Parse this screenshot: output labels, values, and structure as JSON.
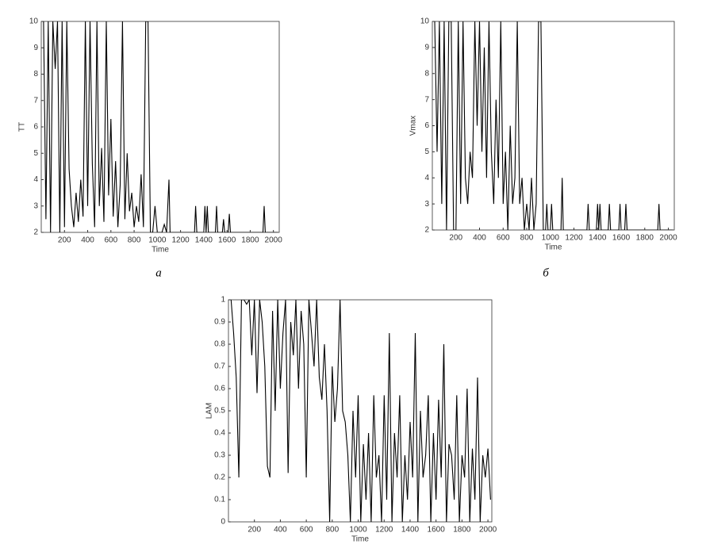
{
  "chart_data": [
    {
      "type": "line",
      "y_label": "TT",
      "x_label": "Time",
      "caption": "а",
      "color": "#000000",
      "xlim": [
        0,
        2050
      ],
      "ylim": [
        2,
        10
      ],
      "xticks": [
        200,
        400,
        600,
        800,
        1000,
        1200,
        1400,
        1600,
        1800,
        2000
      ],
      "yticks": [
        2,
        3,
        4,
        5,
        6,
        7,
        8,
        9,
        10
      ],
      "x": [
        20,
        40,
        60,
        80,
        100,
        120,
        140,
        160,
        180,
        200,
        220,
        240,
        260,
        280,
        300,
        320,
        340,
        360,
        380,
        400,
        420,
        440,
        460,
        480,
        500,
        520,
        540,
        560,
        580,
        600,
        620,
        640,
        660,
        680,
        700,
        720,
        740,
        760,
        780,
        800,
        820,
        840,
        860,
        880,
        900,
        920,
        940,
        960,
        980,
        1000,
        1040,
        1060,
        1080,
        1100,
        1110,
        1320,
        1330,
        1340,
        1400,
        1410,
        1420,
        1430,
        1440,
        1500,
        1510,
        1520,
        1560,
        1570,
        1580,
        1610,
        1620,
        1630,
        1910,
        1920,
        1930,
        2040
      ],
      "values": [
        10,
        2.5,
        10,
        2,
        10,
        8.2,
        10,
        2,
        10,
        2.2,
        10,
        4.4,
        3,
        2.2,
        3.5,
        2.4,
        4,
        2.6,
        10,
        3,
        10,
        4.6,
        2.2,
        10,
        3,
        5.2,
        2.4,
        10,
        3.4,
        6.3,
        2.6,
        4.7,
        2.2,
        3.8,
        10,
        2.5,
        5,
        2.8,
        3.5,
        2.2,
        3,
        2.4,
        4.2,
        2.2,
        10,
        10,
        2,
        2,
        3,
        2,
        2,
        2.3,
        2,
        4,
        2,
        2,
        3,
        2,
        2,
        3,
        2,
        3,
        2,
        2,
        3,
        2,
        2,
        2.5,
        2,
        2,
        2.7,
        2,
        2,
        3,
        2,
        2
      ]
    },
    {
      "type": "line",
      "y_label": "Vmax",
      "x_label": "Time",
      "caption": "б",
      "color": "#000000",
      "xlim": [
        0,
        2050
      ],
      "ylim": [
        2,
        10
      ],
      "xticks": [
        200,
        400,
        600,
        800,
        1000,
        1200,
        1400,
        1600,
        1800,
        2000
      ],
      "yticks": [
        2,
        3,
        4,
        5,
        6,
        7,
        8,
        9,
        10
      ],
      "x": [
        20,
        40,
        60,
        80,
        100,
        120,
        140,
        160,
        180,
        200,
        220,
        240,
        260,
        280,
        300,
        320,
        340,
        360,
        380,
        400,
        420,
        440,
        460,
        480,
        500,
        520,
        540,
        560,
        580,
        600,
        620,
        640,
        660,
        680,
        700,
        720,
        740,
        760,
        780,
        800,
        820,
        840,
        860,
        880,
        900,
        920,
        940,
        960,
        970,
        980,
        1000,
        1010,
        1020,
        1090,
        1100,
        1110,
        1310,
        1320,
        1330,
        1390,
        1400,
        1410,
        1420,
        1430,
        1490,
        1500,
        1510,
        1580,
        1590,
        1600,
        1630,
        1640,
        1650,
        1910,
        1920,
        1930,
        2040
      ],
      "values": [
        10,
        5,
        10,
        3,
        10,
        2,
        10,
        10,
        2,
        2,
        10,
        3,
        10,
        4,
        3,
        5,
        4,
        10,
        6,
        10,
        5,
        9,
        4,
        10,
        5,
        3,
        7,
        4,
        10,
        3,
        5,
        2,
        6,
        3,
        4,
        10,
        3,
        4,
        2,
        3,
        2,
        4,
        2,
        3,
        10,
        10,
        2,
        2,
        3,
        2,
        2,
        3,
        2,
        2,
        4,
        2,
        2,
        3,
        2,
        2,
        3,
        2,
        3,
        2,
        2,
        3,
        2,
        2,
        3,
        2,
        2,
        3,
        2,
        2,
        3,
        2,
        2
      ]
    },
    {
      "type": "line",
      "y_label": "LAM",
      "x_label": "Time",
      "color": "#000000",
      "xlim": [
        0,
        2030
      ],
      "ylim": [
        0,
        1
      ],
      "xticks": [
        200,
        400,
        600,
        800,
        1000,
        1200,
        1400,
        1600,
        1800,
        2000
      ],
      "yticks": [
        0,
        0.1,
        0.2,
        0.3,
        0.4,
        0.5,
        0.6,
        0.7,
        0.8,
        0.9,
        1
      ],
      "x": [
        20,
        40,
        60,
        80,
        100,
        120,
        140,
        160,
        180,
        200,
        220,
        240,
        260,
        280,
        300,
        320,
        340,
        360,
        380,
        400,
        420,
        440,
        460,
        480,
        500,
        520,
        540,
        560,
        580,
        600,
        620,
        640,
        660,
        680,
        700,
        720,
        740,
        760,
        780,
        800,
        820,
        840,
        860,
        880,
        900,
        920,
        940,
        960,
        980,
        1000,
        1020,
        1040,
        1060,
        1080,
        1100,
        1120,
        1140,
        1160,
        1180,
        1200,
        1220,
        1240,
        1260,
        1280,
        1300,
        1320,
        1340,
        1360,
        1380,
        1400,
        1420,
        1440,
        1460,
        1480,
        1500,
        1520,
        1540,
        1560,
        1580,
        1600,
        1620,
        1640,
        1660,
        1680,
        1700,
        1720,
        1740,
        1760,
        1780,
        1800,
        1820,
        1840,
        1860,
        1880,
        1900,
        1920,
        1940,
        1960,
        1980,
        2000,
        2020
      ],
      "values": [
        1,
        0.85,
        0.65,
        0.2,
        1,
        1,
        0.98,
        1,
        0.75,
        1,
        0.58,
        1,
        0.9,
        0.7,
        0.25,
        0.2,
        0.95,
        0.5,
        1,
        0.6,
        0.85,
        1,
        0.22,
        0.9,
        0.75,
        1,
        0.6,
        0.95,
        0.8,
        0.2,
        1,
        0.85,
        0.7,
        1,
        0.65,
        0.55,
        0.8,
        0.5,
        0,
        0.7,
        0.45,
        0.6,
        1,
        0.5,
        0.45,
        0.3,
        0,
        0.5,
        0.2,
        0.57,
        0,
        0.35,
        0.1,
        0.4,
        0,
        0.57,
        0.2,
        0.3,
        0,
        0.57,
        0.1,
        0.85,
        0,
        0.4,
        0.2,
        0.57,
        0,
        0.3,
        0.1,
        0.45,
        0.2,
        0.85,
        0,
        0.5,
        0.2,
        0.3,
        0.57,
        0,
        0.4,
        0.1,
        0.55,
        0.2,
        0.8,
        0,
        0.35,
        0.3,
        0.1,
        0.57,
        0,
        0.3,
        0.2,
        0.6,
        0,
        0.33,
        0.1,
        0.65,
        0,
        0.3,
        0.2,
        0.33,
        0.1
      ]
    }
  ]
}
